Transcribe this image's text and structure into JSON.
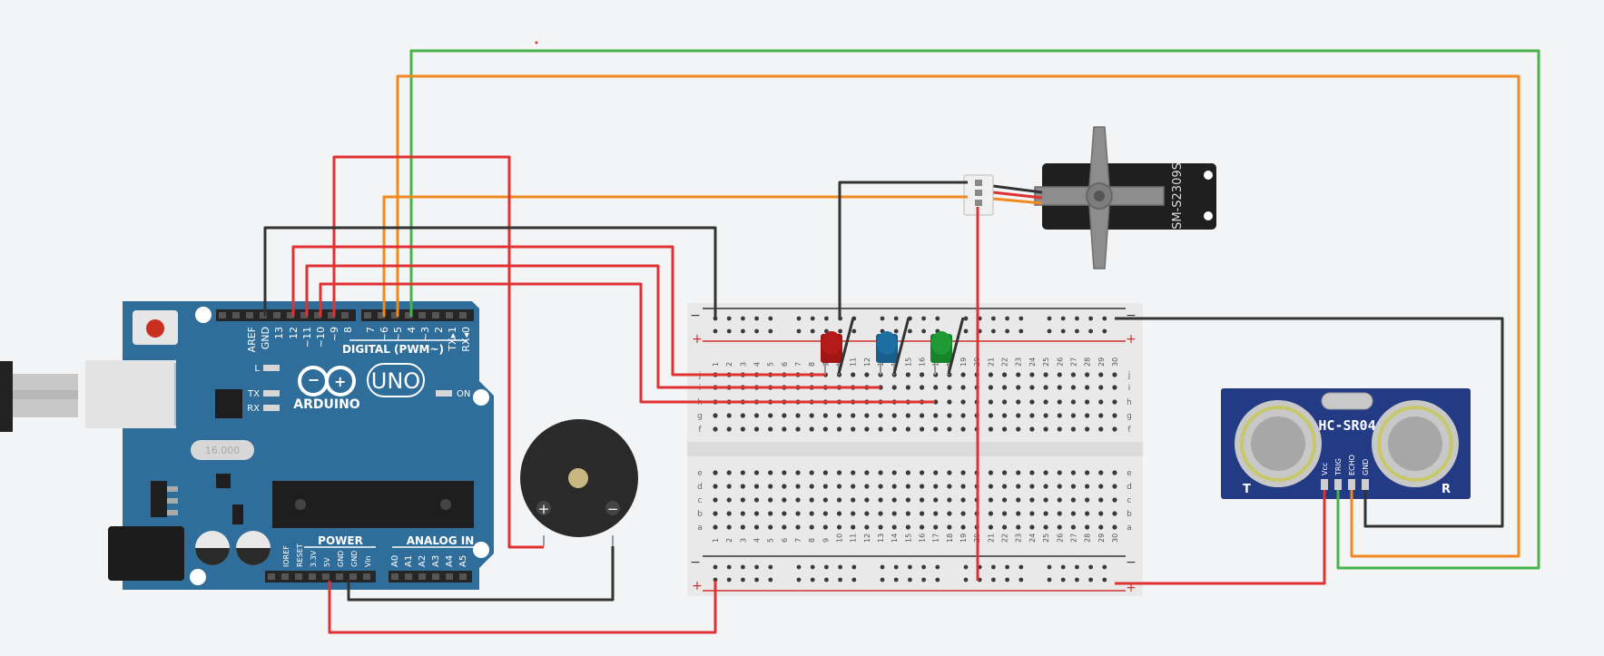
{
  "arduino": {
    "brand": "ARDUINO",
    "model": "UNO",
    "digital_header_label": "DIGITAL (PWM~)",
    "on_label": "ON",
    "l_label": "L",
    "tx_label": "TX",
    "rx_label": "RX",
    "power_label": "POWER",
    "analog_label": "ANALOG IN",
    "crystal_label": "16.000",
    "top_pins": [
      "AREF",
      "GND",
      "13",
      "12",
      "~11",
      "~10",
      "~9",
      "8",
      "7",
      "~6",
      "~5",
      "4",
      "~3",
      "2",
      "TX▸1",
      "RX◂0"
    ],
    "power_pins": [
      "IOREF",
      "RESET",
      "3.3V",
      "5V",
      "GND",
      "GND",
      "Vin"
    ],
    "analog_pins": [
      "A0",
      "A1",
      "A2",
      "A3",
      "A4",
      "A5"
    ]
  },
  "servo": {
    "model": "SM-S2309S"
  },
  "ultrasonic": {
    "model": "HC-SR04",
    "pins": [
      "Vcc",
      "TRIG",
      "ECHO",
      "GND"
    ],
    "t_label": "T",
    "r_label": "R"
  },
  "buzzer": {
    "plus": "+",
    "minus": "−"
  },
  "breadboard": {
    "minus": "−",
    "plus": "+",
    "rows_top": [
      "j",
      "i",
      "h",
      "g",
      "f"
    ],
    "rows_bottom": [
      "e",
      "d",
      "c",
      "b",
      "a"
    ],
    "columns": [
      "1",
      "2",
      "3",
      "4",
      "5",
      "6",
      "7",
      "8",
      "9",
      "10",
      "11",
      "12",
      "13",
      "14",
      "15",
      "16",
      "17",
      "18",
      "19",
      "20",
      "21",
      "22",
      "23",
      "24",
      "25",
      "26",
      "27",
      "28",
      "29",
      "30"
    ]
  },
  "leds": [
    {
      "name": "red",
      "color": "#b51a1a"
    },
    {
      "name": "blue",
      "color": "#1d6fa3"
    },
    {
      "name": "green",
      "color": "#1f9a35"
    }
  ],
  "wire_colors": {
    "red": "#e03232",
    "black": "#333333",
    "orange": "#f0891f",
    "green": "#47b34a"
  }
}
